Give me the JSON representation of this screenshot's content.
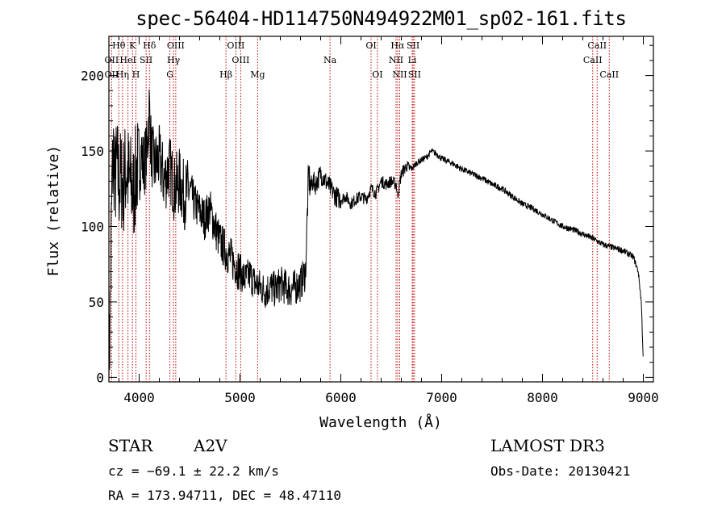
{
  "chart_data": {
    "type": "line",
    "title": "spec-56404-HD114750N494922M01_sp02-161.fits",
    "xlabel": "Wavelength (Å)",
    "ylabel": "Flux (relative)",
    "xlim": [
      3700,
      9100
    ],
    "ylim": [
      -3,
      226
    ],
    "xticks": [
      4000,
      5000,
      6000,
      7000,
      8000,
      9000
    ],
    "yticks": [
      0,
      50,
      100,
      150,
      200
    ],
    "series": [
      {
        "name": "spectrum",
        "x": [
          3700,
          3710,
          3720,
          3730,
          3745,
          3760,
          3780,
          3800,
          3820,
          3840,
          3860,
          3880,
          3900,
          3920,
          3940,
          3960,
          3980,
          4000,
          4020,
          4040,
          4060,
          4080,
          4100,
          4120,
          4150,
          4200,
          4250,
          4300,
          4350,
          4400,
          4450,
          4500,
          4550,
          4600,
          4650,
          4700,
          4750,
          4800,
          4850,
          4900,
          4950,
          5000,
          5050,
          5100,
          5150,
          5200,
          5250,
          5300,
          5350,
          5400,
          5450,
          5500,
          5550,
          5600,
          5650,
          5680,
          5700,
          5720,
          5750,
          5800,
          5850,
          5900,
          5950,
          6000,
          6050,
          6100,
          6150,
          6200,
          6250,
          6300,
          6350,
          6400,
          6450,
          6500,
          6550,
          6562,
          6600,
          6650,
          6700,
          6750,
          6800,
          6850,
          6900,
          6950,
          7000,
          7100,
          7200,
          7300,
          7400,
          7500,
          7600,
          7700,
          7800,
          7900,
          8000,
          8100,
          8200,
          8300,
          8400,
          8500,
          8600,
          8700,
          8800,
          8900,
          8950,
          8980,
          9000
        ],
        "y": [
          5,
          30,
          80,
          125,
          150,
          130,
          140,
          128,
          132,
          125,
          135,
          138,
          130,
          128,
          120,
          130,
          140,
          135,
          150,
          140,
          145,
          150,
          180,
          150,
          140,
          145,
          130,
          140,
          125,
          130,
          120,
          125,
          115,
          110,
          105,
          112,
          100,
          90,
          85,
          80,
          75,
          70,
          65,
          68,
          62,
          60,
          57,
          60,
          58,
          62,
          60,
          58,
          60,
          62,
          70,
          135,
          125,
          130,
          128,
          135,
          130,
          125,
          120,
          118,
          120,
          115,
          118,
          120,
          118,
          125,
          122,
          130,
          128,
          130,
          128,
          120,
          135,
          140,
          138,
          142,
          144,
          146,
          150,
          148,
          145,
          142,
          138,
          135,
          132,
          128,
          125,
          120,
          115,
          112,
          108,
          104,
          100,
          98,
          95,
          92,
          88,
          86,
          84,
          80,
          70,
          50,
          10
        ]
      }
    ],
    "lines": [
      {
        "label": "Hθ",
        "x": 3798,
        "row": 1
      },
      {
        "label": "K",
        "x": 3934,
        "row": 1
      },
      {
        "label": "Hδ",
        "x": 4102,
        "row": 1
      },
      {
        "label": "OIII",
        "x": 4363,
        "row": 1
      },
      {
        "label": "OIII",
        "x": 4959,
        "row": 1
      },
      {
        "label": "OI",
        "x": 6300,
        "row": 1
      },
      {
        "label": "Hα",
        "x": 6563,
        "row": 1
      },
      {
        "label": "SII",
        "x": 6717,
        "row": 1
      },
      {
        "label": "CaII",
        "x": 8542,
        "row": 1
      },
      {
        "label": "OII",
        "x": 3727,
        "row": 2
      },
      {
        "label": "HeI",
        "x": 3889,
        "row": 2
      },
      {
        "label": "SII",
        "x": 4069,
        "row": 2
      },
      {
        "label": "Hγ",
        "x": 4341,
        "row": 2
      },
      {
        "label": "OIII",
        "x": 5007,
        "row": 2
      },
      {
        "label": "Na",
        "x": 5893,
        "row": 2
      },
      {
        "label": "NII",
        "x": 6548,
        "row": 2
      },
      {
        "label": "Li",
        "x": 6708,
        "row": 2
      },
      {
        "label": "CaII",
        "x": 8498,
        "row": 2
      },
      {
        "label": "OII",
        "x": 3727,
        "row": 3
      },
      {
        "label": "Hη",
        "x": 3835,
        "row": 3
      },
      {
        "label": "H",
        "x": 3968,
        "row": 3
      },
      {
        "label": "G",
        "x": 4305,
        "row": 3
      },
      {
        "label": "Hβ",
        "x": 4861,
        "row": 3
      },
      {
        "label": "Mg",
        "x": 5175,
        "row": 3
      },
      {
        "label": "OI",
        "x": 6363,
        "row": 3
      },
      {
        "label": "NII",
        "x": 6584,
        "row": 3
      },
      {
        "label": "SII",
        "x": 6731,
        "row": 3
      },
      {
        "label": "CaII",
        "x": 8662,
        "row": 3
      }
    ]
  },
  "info": {
    "object_type": "STAR",
    "subclass": "A2V",
    "survey": "LAMOST DR3",
    "cz": "cz = −69.1 ± 22.2 km/s",
    "obs_date": "Obs-Date: 20130421",
    "coords": "RA = 173.94711, DEC =  48.47110"
  }
}
